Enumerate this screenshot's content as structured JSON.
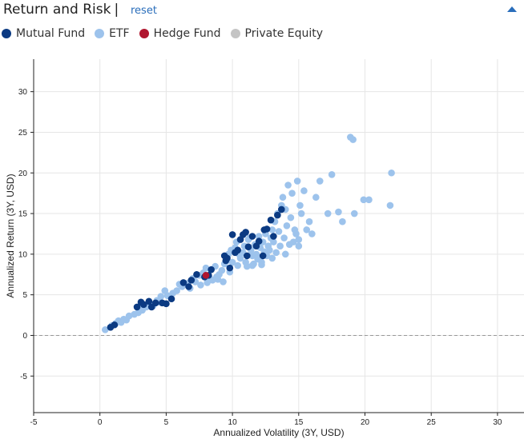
{
  "header": {
    "title": "Return and Risk",
    "separator": "|",
    "reset_label": "reset"
  },
  "legend": [
    {
      "name": "Mutual Fund",
      "color": "#0b3a82"
    },
    {
      "name": "ETF",
      "color": "#9dc3ec"
    },
    {
      "name": "Hedge Fund",
      "color": "#b0162f"
    },
    {
      "name": "Private Equity",
      "color": "#c4c4c4"
    }
  ],
  "chart_data": {
    "type": "scatter",
    "xlabel": "Annualized Volatility (3Y, USD)",
    "ylabel": "Annualized Return (3Y, USD)",
    "xlim": [
      -5,
      32
    ],
    "ylim": [
      -9.5,
      34
    ],
    "xticks": [
      -5,
      0,
      5,
      10,
      15,
      20,
      25,
      30
    ],
    "yticks": [
      -5,
      0,
      5,
      10,
      15,
      20,
      25,
      30
    ],
    "grid": true,
    "zero_line": "dashed",
    "series": [
      {
        "name": "ETF",
        "color": "#9dc3ec",
        "points": [
          [
            0.4,
            0.7
          ],
          [
            0.9,
            1.2
          ],
          [
            1.2,
            1.5
          ],
          [
            1.4,
            1.8
          ],
          [
            1.6,
            1.6
          ],
          [
            2.0,
            1.9
          ],
          [
            2.6,
            2.6
          ],
          [
            2.9,
            2.8
          ],
          [
            3.2,
            3.1
          ],
          [
            3.5,
            3.5
          ],
          [
            3.8,
            3.9
          ],
          [
            4.0,
            3.6
          ],
          [
            4.3,
            4.3
          ],
          [
            4.6,
            4.8
          ],
          [
            4.9,
            5.5
          ],
          [
            5.1,
            4.9
          ],
          [
            5.5,
            5.2
          ],
          [
            5.8,
            5.5
          ],
          [
            6.2,
            6.0
          ],
          [
            6.6,
            6.4
          ],
          [
            7.0,
            7.0
          ],
          [
            7.2,
            6.6
          ],
          [
            7.5,
            7.4
          ],
          [
            7.8,
            7.7
          ],
          [
            8.0,
            8.3
          ],
          [
            8.3,
            7.0
          ],
          [
            8.5,
            6.8
          ],
          [
            8.8,
            7.2
          ],
          [
            9.0,
            7.5
          ],
          [
            9.2,
            8.0
          ],
          [
            8.7,
            8.5
          ],
          [
            9.4,
            8.8
          ],
          [
            9.6,
            9.2
          ],
          [
            9.7,
            10.0
          ],
          [
            9.9,
            10.5
          ],
          [
            10.0,
            9.0
          ],
          [
            10.2,
            10.8
          ],
          [
            10.3,
            11.5
          ],
          [
            10.5,
            10.0
          ],
          [
            10.6,
            9.5
          ],
          [
            10.8,
            10.2
          ],
          [
            10.9,
            11.0
          ],
          [
            11.0,
            9.0
          ],
          [
            11.1,
            8.5
          ],
          [
            11.2,
            11.8
          ],
          [
            11.3,
            12.0
          ],
          [
            11.4,
            10.5
          ],
          [
            11.5,
            9.8
          ],
          [
            11.6,
            8.8
          ],
          [
            11.7,
            11.2
          ],
          [
            11.8,
            10.0
          ],
          [
            11.9,
            9.4
          ],
          [
            12.0,
            12.2
          ],
          [
            12.1,
            10.8
          ],
          [
            12.2,
            9.0
          ],
          [
            12.3,
            11.5
          ],
          [
            12.4,
            10.3
          ],
          [
            12.5,
            12.5
          ],
          [
            12.6,
            9.8
          ],
          [
            12.7,
            11.0
          ],
          [
            12.8,
            10.5
          ],
          [
            12.9,
            12.0
          ],
          [
            13.0,
            13.0
          ],
          [
            13.1,
            11.5
          ],
          [
            13.2,
            14.0
          ],
          [
            13.3,
            10.2
          ],
          [
            13.4,
            15.0
          ],
          [
            13.5,
            12.8
          ],
          [
            13.6,
            11.0
          ],
          [
            13.7,
            16.0
          ],
          [
            13.8,
            17.0
          ],
          [
            13.9,
            12.0
          ],
          [
            14.0,
            15.5
          ],
          [
            14.1,
            13.5
          ],
          [
            14.2,
            18.5
          ],
          [
            14.3,
            11.2
          ],
          [
            14.4,
            14.5
          ],
          [
            14.5,
            17.5
          ],
          [
            14.6,
            11.5
          ],
          [
            14.7,
            13.0
          ],
          [
            14.8,
            12.5
          ],
          [
            14.9,
            19.0
          ],
          [
            15.0,
            11.8
          ],
          [
            15.1,
            16.0
          ],
          [
            15.2,
            15.0
          ],
          [
            15.4,
            17.8
          ],
          [
            15.6,
            13.0
          ],
          [
            15.8,
            14.0
          ],
          [
            16.0,
            12.5
          ],
          [
            16.3,
            17.0
          ],
          [
            16.6,
            19.0
          ],
          [
            17.2,
            15.0
          ],
          [
            17.5,
            19.8
          ],
          [
            18.0,
            15.2
          ],
          [
            18.3,
            14.0
          ],
          [
            18.9,
            24.4
          ],
          [
            19.1,
            24.1
          ],
          [
            19.2,
            15.0
          ],
          [
            19.9,
            16.7
          ],
          [
            20.3,
            16.7
          ],
          [
            21.9,
            16.0
          ],
          [
            22.0,
            20.0
          ],
          [
            9.3,
            6.6
          ],
          [
            8.9,
            6.9
          ],
          [
            10.4,
            8.6
          ],
          [
            11.5,
            8.6
          ],
          [
            12.2,
            8.7
          ],
          [
            13.0,
            9.5
          ],
          [
            14.0,
            10.0
          ],
          [
            15.0,
            11.0
          ],
          [
            7.6,
            6.2
          ],
          [
            6.8,
            5.8
          ],
          [
            5.3,
            4.8
          ],
          [
            4.4,
            4.1
          ],
          [
            3.0,
            3.4
          ],
          [
            2.2,
            2.4
          ],
          [
            1.8,
            2.0
          ],
          [
            6.0,
            6.3
          ],
          [
            8.1,
            6.5
          ],
          [
            9.8,
            7.8
          ]
        ]
      },
      {
        "name": "Mutual Fund",
        "color": "#0b3a82",
        "points": [
          [
            0.8,
            1.0
          ],
          [
            1.1,
            1.3
          ],
          [
            2.8,
            3.5
          ],
          [
            3.1,
            4.1
          ],
          [
            3.3,
            3.8
          ],
          [
            3.7,
            4.2
          ],
          [
            3.9,
            3.5
          ],
          [
            4.2,
            4.0
          ],
          [
            4.7,
            4.0
          ],
          [
            5.0,
            3.9
          ],
          [
            5.4,
            4.5
          ],
          [
            6.3,
            6.5
          ],
          [
            6.7,
            6.0
          ],
          [
            6.9,
            6.8
          ],
          [
            7.3,
            7.5
          ],
          [
            7.9,
            7.2
          ],
          [
            8.2,
            7.4
          ],
          [
            8.4,
            8.1
          ],
          [
            9.4,
            9.8
          ],
          [
            9.5,
            9.2
          ],
          [
            10.0,
            12.4
          ],
          [
            10.2,
            10.2
          ],
          [
            10.6,
            11.8
          ],
          [
            10.8,
            12.4
          ],
          [
            11.0,
            12.7
          ],
          [
            11.2,
            10.9
          ],
          [
            11.5,
            12.2
          ],
          [
            11.8,
            11.0
          ],
          [
            12.0,
            11.6
          ],
          [
            12.3,
            9.8
          ],
          [
            12.6,
            13.1
          ],
          [
            12.9,
            14.2
          ],
          [
            13.1,
            12.2
          ],
          [
            13.4,
            14.8
          ],
          [
            13.7,
            15.5
          ],
          [
            12.4,
            13.0
          ],
          [
            11.1,
            9.8
          ],
          [
            10.4,
            10.5
          ],
          [
            9.6,
            9.5
          ],
          [
            9.8,
            8.3
          ]
        ]
      },
      {
        "name": "Hedge Fund",
        "color": "#b0162f",
        "points": [
          [
            8.0,
            7.4
          ]
        ]
      },
      {
        "name": "Private Equity",
        "color": "#c4c4c4",
        "points": []
      }
    ]
  }
}
